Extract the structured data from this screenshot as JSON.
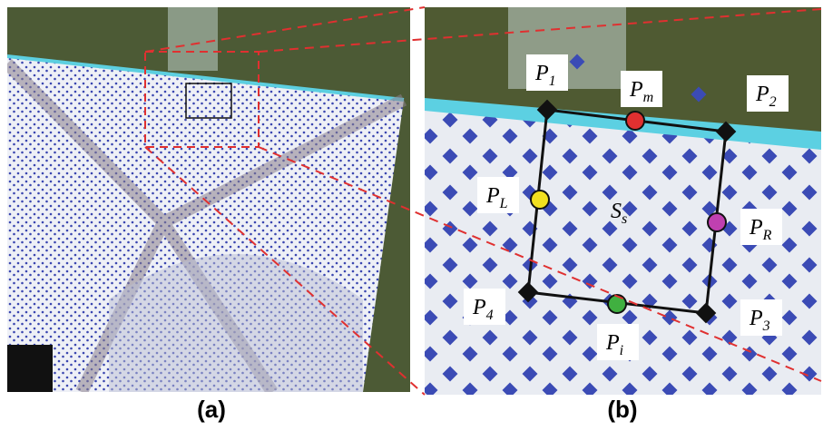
{
  "panels": [
    {
      "caption": "(a)"
    },
    {
      "caption": "(b)"
    }
  ],
  "labels": [
    {
      "symbol": "P",
      "subscript": "1"
    },
    {
      "symbol": "P",
      "subscript": "m"
    },
    {
      "symbol": "P",
      "subscript": "2"
    },
    {
      "symbol": "P",
      "subscript": "L"
    },
    {
      "symbol": "S",
      "subscript": "s"
    },
    {
      "symbol": "P",
      "subscript": "R"
    },
    {
      "symbol": "P",
      "subscript": "4"
    },
    {
      "symbol": "P",
      "subscript": "i"
    },
    {
      "symbol": "P",
      "subscript": "3"
    }
  ]
}
